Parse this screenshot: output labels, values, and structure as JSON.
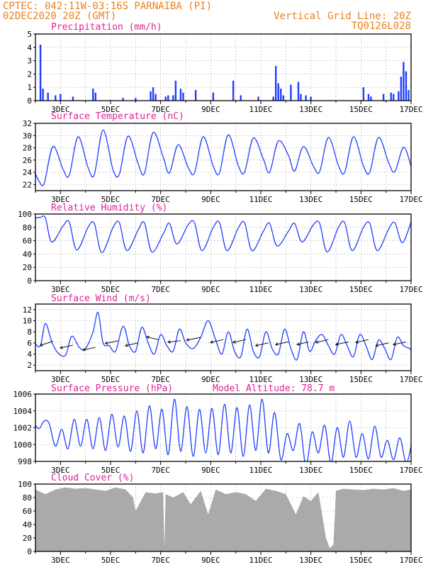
{
  "header": {
    "line1": "CPTEC:   042:11W-03:16S  PARNAIBA (PI)",
    "line2_left": "02DEC2020 20Z (GMT)",
    "line2_right": "Vertical Grid Line: 20Z",
    "line3_right": "TQ0126L028"
  },
  "colors": {
    "header": "#e8821e",
    "title": "#e0209a",
    "line": "#1f3fff",
    "bars": "#1f3fff",
    "cloud": "#aaaaaa",
    "arrow": "#000000"
  },
  "x_labels": [
    "3DEC",
    "5DEC",
    "7DEC",
    "9DEC",
    "11DEC",
    "13DEC",
    "15DEC",
    "17DEC"
  ],
  "panels": {
    "precip": {
      "title": "Precipitation (mm/h)",
      "yticks": [
        "0",
        "1",
        "2",
        "3",
        "4",
        "5"
      ]
    },
    "temp": {
      "title": "Surface Temperature (nC)",
      "yticks": [
        "22",
        "24",
        "26",
        "28",
        "30",
        "32"
      ]
    },
    "rh": {
      "title": "Relative Humidity (%)",
      "yticks": [
        "0",
        "20",
        "40",
        "60",
        "80",
        "100"
      ]
    },
    "wind": {
      "title": "Surface Wind (m/s)",
      "yticks": [
        "2",
        "4",
        "6",
        "8",
        "10",
        "12"
      ]
    },
    "pres": {
      "title": "Surface Pressure (hPa)",
      "extra": "Model Altitude: 78.7 m",
      "yticks": [
        "998",
        "1000",
        "1002",
        "1004",
        "1006"
      ]
    },
    "cloud": {
      "title": "Cloud Cover (%)",
      "yticks": [
        "0",
        "20",
        "40",
        "60",
        "80",
        "100"
      ]
    }
  },
  "chart_data": [
    {
      "type": "bar",
      "title": "Precipitation (mm/h)",
      "x": [
        2.2,
        2.3,
        2.5,
        2.8,
        3.0,
        3.5,
        4.3,
        4.4,
        5.5,
        6.0,
        6.6,
        6.7,
        6.8,
        7.2,
        7.3,
        7.5,
        7.6,
        7.8,
        7.9,
        8.4,
        9.1,
        9.9,
        10.2,
        10.9,
        11.5,
        11.6,
        11.7,
        11.8,
        11.9,
        12.2,
        12.5,
        12.6,
        12.8,
        13.0,
        15.1,
        15.3,
        15.4,
        15.9,
        16.2,
        16.3,
        16.5,
        16.6,
        16.7,
        16.8,
        16.9
      ],
      "values": [
        4.2,
        0.9,
        0.6,
        0.4,
        0.5,
        0.3,
        0.9,
        0.6,
        0.2,
        0.2,
        0.7,
        1.0,
        0.5,
        0.3,
        0.4,
        0.4,
        1.5,
        0.9,
        0.6,
        0.8,
        0.6,
        1.5,
        0.4,
        0.3,
        0.3,
        2.6,
        1.3,
        0.9,
        0.4,
        1.2,
        1.4,
        0.5,
        0.4,
        0.3,
        1.0,
        0.5,
        0.3,
        0.5,
        0.6,
        0.5,
        0.7,
        1.8,
        2.9,
        2.2,
        0.8
      ],
      "ylim": [
        0,
        5
      ]
    },
    {
      "type": "line",
      "title": "Surface Temperature (nC)",
      "x": [
        2.0,
        2.15,
        2.35,
        2.7,
        3.1,
        3.35,
        3.7,
        4.1,
        4.35,
        4.7,
        5.1,
        5.35,
        5.7,
        6.1,
        6.35,
        6.7,
        7.1,
        7.35,
        7.7,
        8.1,
        8.35,
        8.7,
        9.1,
        9.35,
        9.7,
        10.1,
        10.35,
        10.7,
        11.1,
        11.35,
        11.7,
        12.1,
        12.35,
        12.7,
        13.1,
        13.35,
        13.7,
        14.1,
        14.35,
        14.7,
        15.1,
        15.35,
        15.7,
        16.1,
        16.35,
        16.7,
        17.0
      ],
      "y": [
        23.8,
        22.5,
        22.2,
        28.2,
        24.5,
        23.5,
        29.8,
        24.8,
        23.6,
        30.9,
        24.4,
        23.7,
        29.9,
        25.4,
        23.8,
        30.5,
        26.5,
        23.9,
        28.5,
        24.8,
        23.9,
        29.8,
        25.0,
        23.9,
        30.1,
        25.1,
        24.0,
        29.6,
        26.2,
        24.0,
        29.1,
        26.8,
        24.2,
        28.2,
        25.0,
        24.1,
        29.7,
        25.1,
        24.0,
        29.8,
        25.0,
        24.0,
        29.7,
        25.6,
        24.1,
        28.1,
        25.0
      ],
      "ylim": [
        21,
        32
      ]
    },
    {
      "type": "line",
      "title": "Relative Humidity (%)",
      "x": [
        2.0,
        2.2,
        2.4,
        2.65,
        3.1,
        3.35,
        3.65,
        4.1,
        4.35,
        4.65,
        5.1,
        5.35,
        5.65,
        6.1,
        6.35,
        6.65,
        7.1,
        7.35,
        7.65,
        8.1,
        8.35,
        8.65,
        9.1,
        9.35,
        9.65,
        10.1,
        10.35,
        10.65,
        11.1,
        11.35,
        11.65,
        12.1,
        12.35,
        12.65,
        13.1,
        13.35,
        13.65,
        14.1,
        14.35,
        14.65,
        15.1,
        15.35,
        15.65,
        16.1,
        16.35,
        16.65,
        17.0
      ],
      "y": [
        94,
        95,
        94,
        58,
        82,
        88,
        46,
        80,
        86,
        42,
        80,
        87,
        45,
        76,
        87,
        43,
        70,
        86,
        55,
        84,
        87,
        45,
        80,
        87,
        45,
        79,
        87,
        45,
        74,
        86,
        52,
        74,
        86,
        58,
        84,
        86,
        43,
        80,
        87,
        45,
        80,
        86,
        45,
        77,
        87,
        57,
        88
      ],
      "ylim": [
        0,
        100
      ]
    },
    {
      "type": "line",
      "title": "Surface Wind (m/s)",
      "x": [
        2.0,
        2.2,
        2.4,
        2.65,
        2.9,
        3.2,
        3.45,
        3.75,
        4.0,
        4.3,
        4.5,
        4.7,
        4.95,
        5.2,
        5.5,
        5.75,
        6.0,
        6.25,
        6.5,
        6.75,
        7.0,
        7.25,
        7.5,
        7.75,
        8.0,
        8.3,
        8.6,
        8.9,
        9.2,
        9.45,
        9.7,
        9.95,
        10.2,
        10.45,
        10.7,
        10.95,
        11.2,
        11.45,
        11.7,
        11.95,
        12.2,
        12.45,
        12.7,
        12.95,
        13.2,
        13.45,
        13.7,
        13.95,
        14.2,
        14.45,
        14.7,
        14.95,
        15.2,
        15.45,
        15.7,
        15.95,
        16.2,
        16.45,
        16.7,
        16.95,
        17.0
      ],
      "y": [
        5.8,
        5.5,
        9.5,
        6.2,
        4.2,
        3.8,
        7.2,
        5.2,
        5.0,
        8.0,
        11.5,
        6.0,
        5.5,
        4.5,
        9.0,
        5.5,
        4.5,
        8.8,
        6.0,
        4.0,
        7.5,
        5.5,
        4.5,
        8.5,
        6.0,
        5.0,
        7.0,
        10.0,
        6.5,
        4.0,
        8.0,
        4.5,
        3.5,
        8.5,
        4.5,
        3.5,
        8.0,
        5.0,
        4.0,
        8.5,
        5.0,
        3.0,
        8.0,
        4.5,
        6.5,
        7.5,
        5.5,
        4.0,
        7.5,
        5.5,
        3.5,
        7.5,
        5.5,
        3.0,
        6.5,
        5.0,
        3.0,
        7.0,
        5.5,
        5.0,
        4.5
      ],
      "ylim": [
        1,
        13
      ]
    },
    {
      "type": "line",
      "title": "Surface Pressure (hPa)",
      "x": [
        2.0,
        2.15,
        2.35,
        2.55,
        2.8,
        3.05,
        3.3,
        3.55,
        3.8,
        4.05,
        4.3,
        4.55,
        4.8,
        5.05,
        5.3,
        5.55,
        5.8,
        6.05,
        6.3,
        6.55,
        6.8,
        7.05,
        7.3,
        7.55,
        7.8,
        8.05,
        8.3,
        8.55,
        8.8,
        9.05,
        9.3,
        9.55,
        9.8,
        10.05,
        10.3,
        10.55,
        10.8,
        11.05,
        11.3,
        11.55,
        11.8,
        12.05,
        12.3,
        12.55,
        12.8,
        13.05,
        13.3,
        13.55,
        13.8,
        14.05,
        14.3,
        14.55,
        14.8,
        15.05,
        15.3,
        15.55,
        15.8,
        16.05,
        16.3,
        16.55,
        16.8,
        17.0
      ],
      "y": [
        1002.3,
        1001.9,
        1002.8,
        1002.5,
        999.8,
        1001.8,
        999.5,
        1003.0,
        999.8,
        1003.0,
        999.5,
        1003.2,
        999.3,
        1003.6,
        999.7,
        1003.4,
        999.2,
        1004.0,
        999.0,
        1004.6,
        999.5,
        1004.2,
        998.8,
        1005.4,
        999.2,
        1004.5,
        998.6,
        1004.2,
        999.0,
        1004.3,
        998.8,
        1004.8,
        999.0,
        1004.4,
        998.6,
        1004.7,
        999.3,
        1005.4,
        999.0,
        1003.8,
        998.2,
        1001.3,
        999.3,
        1002.5,
        997.5,
        1001.5,
        999.0,
        1002.3,
        997.8,
        1002.0,
        998.5,
        1002.8,
        998.5,
        1001.3,
        998.3,
        1002.2,
        998.5,
        1000.5,
        998.2,
        1000.8,
        997.8,
        999.8
      ],
      "ylim": [
        998,
        1006
      ]
    },
    {
      "type": "area",
      "title": "Cloud Cover (%)",
      "x": [
        2.0,
        2.1,
        2.4,
        2.8,
        3.2,
        3.6,
        4.0,
        4.4,
        4.8,
        5.2,
        5.6,
        5.9,
        6.0,
        6.4,
        6.8,
        7.1,
        7.15,
        7.2,
        7.5,
        7.9,
        8.2,
        8.6,
        8.9,
        9.2,
        9.6,
        10.0,
        10.4,
        10.8,
        11.2,
        11.6,
        12.0,
        12.4,
        12.7,
        13.0,
        13.3,
        13.6,
        13.75,
        13.9,
        14.0,
        14.3,
        14.7,
        15.1,
        15.5,
        15.9,
        16.3,
        16.7,
        17.0
      ],
      "y": [
        92,
        90,
        85,
        92,
        95,
        93,
        94,
        92,
        90,
        95,
        92,
        80,
        60,
        88,
        86,
        88,
        5,
        85,
        80,
        88,
        70,
        90,
        55,
        92,
        85,
        88,
        85,
        75,
        93,
        90,
        85,
        55,
        82,
        75,
        88,
        20,
        5,
        10,
        90,
        93,
        92,
        91,
        93,
        92,
        94,
        90,
        92
      ],
      "ylim": [
        0,
        100
      ]
    }
  ]
}
